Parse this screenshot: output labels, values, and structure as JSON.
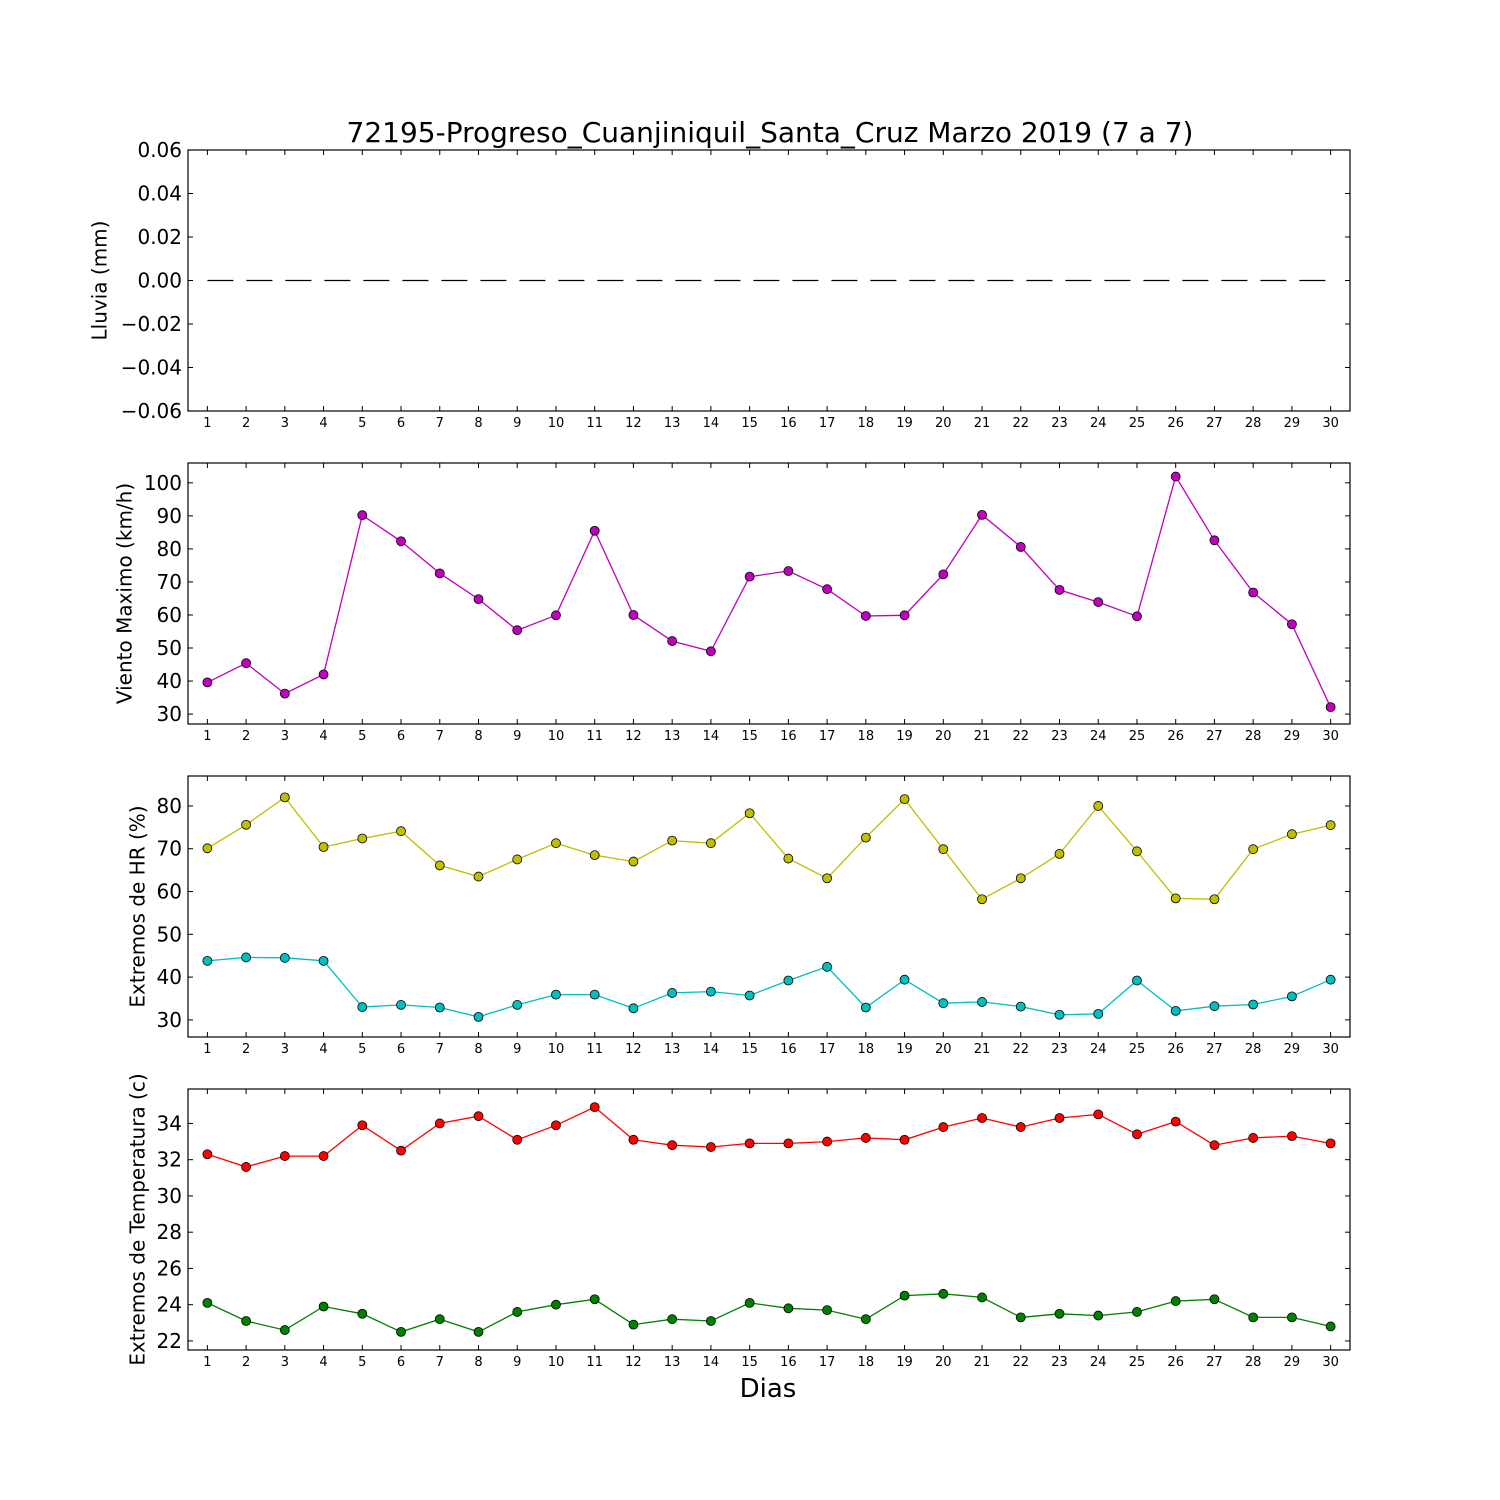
{
  "figure": {
    "title": "72195-Progreso_Cuanjiniquil_Santa_Cruz Marzo 2019  (7 a 7)",
    "xlabel": "Dias"
  },
  "chart_data": [
    {
      "type": "line",
      "title": "72195-Progreso_Cuanjiniquil_Santa_Cruz Marzo 2019  (7 a 7)",
      "ylabel": "Lluvia (mm)",
      "x": [
        1,
        2,
        3,
        4,
        5,
        6,
        7,
        8,
        9,
        10,
        11,
        12,
        13,
        14,
        15,
        16,
        17,
        18,
        19,
        20,
        21,
        22,
        23,
        24,
        25,
        26,
        27,
        28,
        29,
        30
      ],
      "ylim": [
        -0.06,
        0.06
      ],
      "yticks": [
        -0.06,
        -0.04,
        -0.02,
        0.0,
        0.02,
        0.04,
        0.06
      ],
      "ytick_labels": [
        "−0.06",
        "−0.04",
        "−0.02",
        "0.00",
        "0.02",
        "0.04",
        "0.06"
      ],
      "grid": false,
      "series": [
        {
          "color": "#000000",
          "style": "dashed",
          "markers": false,
          "values": [
            0,
            0,
            0,
            0,
            0,
            0,
            0,
            0,
            0,
            0,
            0,
            0,
            0,
            0,
            0,
            0,
            0,
            0,
            0,
            0,
            0,
            0,
            0,
            0,
            0,
            0,
            0,
            0,
            0,
            0
          ]
        }
      ]
    },
    {
      "type": "line",
      "ylabel": "Viento Maximo (km/h)",
      "x": [
        1,
        2,
        3,
        4,
        5,
        6,
        7,
        8,
        9,
        10,
        11,
        12,
        13,
        14,
        15,
        16,
        17,
        18,
        19,
        20,
        21,
        22,
        23,
        24,
        25,
        26,
        27,
        28,
        29,
        30
      ],
      "ylim": [
        27,
        106
      ],
      "yticks": [
        30,
        40,
        50,
        60,
        70,
        80,
        90,
        100
      ],
      "ytick_labels": [
        "30",
        "40",
        "50",
        "60",
        "70",
        "80",
        "90",
        "100"
      ],
      "grid": false,
      "series": [
        {
          "color": "#bf00bf",
          "style": "solid",
          "markers": true,
          "values": [
            39.6,
            45.4,
            36.2,
            42.0,
            90.2,
            82.3,
            72.6,
            64.8,
            55.4,
            59.9,
            85.5,
            60.0,
            52.1,
            49.0,
            71.6,
            73.3,
            67.8,
            59.7,
            59.9,
            72.3,
            90.3,
            80.6,
            67.6,
            63.9,
            59.6,
            101.9,
            82.6,
            66.8,
            57.2,
            32.1
          ]
        }
      ]
    },
    {
      "type": "line",
      "ylabel": "Extremos de HR (%)",
      "x": [
        1,
        2,
        3,
        4,
        5,
        6,
        7,
        8,
        9,
        10,
        11,
        12,
        13,
        14,
        15,
        16,
        17,
        18,
        19,
        20,
        21,
        22,
        23,
        24,
        25,
        26,
        27,
        28,
        29,
        30
      ],
      "ylim": [
        26,
        87
      ],
      "yticks": [
        30,
        40,
        50,
        60,
        70,
        80
      ],
      "ytick_labels": [
        "30",
        "40",
        "50",
        "60",
        "70",
        "80"
      ],
      "grid": false,
      "series": [
        {
          "color": "#bfbf00",
          "style": "solid",
          "markers": true,
          "values": [
            70.1,
            75.6,
            82.0,
            70.4,
            72.4,
            74.1,
            66.1,
            63.5,
            67.5,
            71.3,
            68.5,
            67.0,
            71.9,
            71.3,
            78.3,
            67.7,
            63.1,
            72.6,
            81.6,
            69.9,
            58.2,
            63.1,
            68.8,
            80.0,
            69.4,
            58.4,
            58.2,
            69.9,
            73.4,
            75.5
          ]
        },
        {
          "color": "#00bfbf",
          "style": "solid",
          "markers": true,
          "values": [
            43.8,
            44.6,
            44.5,
            43.8,
            33.0,
            33.5,
            32.9,
            30.7,
            33.5,
            35.9,
            35.9,
            32.7,
            36.3,
            36.6,
            35.7,
            39.2,
            42.4,
            32.9,
            39.4,
            33.9,
            34.2,
            33.1,
            31.2,
            31.4,
            39.2,
            32.1,
            33.2,
            33.6,
            35.5,
            39.4
          ]
        }
      ]
    },
    {
      "type": "line",
      "ylabel": "Extremos de Temperatura (c)",
      "xlabel": "Dias",
      "x": [
        1,
        2,
        3,
        4,
        5,
        6,
        7,
        8,
        9,
        10,
        11,
        12,
        13,
        14,
        15,
        16,
        17,
        18,
        19,
        20,
        21,
        22,
        23,
        24,
        25,
        26,
        27,
        28,
        29,
        30
      ],
      "ylim": [
        21.5,
        35.9
      ],
      "yticks": [
        22,
        24,
        26,
        28,
        30,
        32,
        34
      ],
      "ytick_labels": [
        "22",
        "24",
        "26",
        "28",
        "30",
        "32",
        "34"
      ],
      "grid": false,
      "series": [
        {
          "color": "#ff0000",
          "style": "solid",
          "markers": true,
          "values": [
            32.3,
            31.6,
            32.2,
            32.2,
            33.9,
            32.5,
            34.0,
            34.4,
            33.1,
            33.9,
            34.9,
            33.1,
            32.8,
            32.7,
            32.9,
            32.9,
            33.0,
            33.2,
            33.1,
            33.8,
            34.3,
            33.8,
            34.3,
            34.5,
            33.4,
            34.1,
            32.8,
            33.2,
            33.3,
            32.9
          ]
        },
        {
          "color": "#008000",
          "style": "solid",
          "markers": true,
          "values": [
            24.1,
            23.1,
            22.6,
            23.9,
            23.5,
            22.5,
            23.2,
            22.5,
            23.6,
            24.0,
            24.3,
            22.9,
            23.2,
            23.1,
            24.1,
            23.8,
            23.7,
            23.2,
            24.5,
            24.6,
            24.4,
            23.3,
            23.5,
            23.4,
            23.6,
            24.2,
            24.3,
            23.3,
            23.3,
            22.8
          ]
        }
      ]
    }
  ]
}
